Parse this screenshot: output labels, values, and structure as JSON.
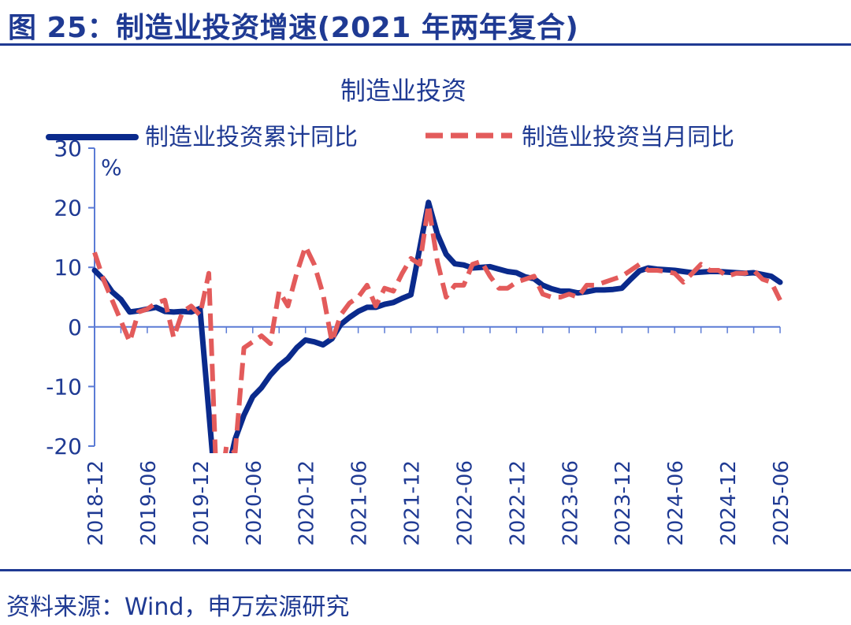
{
  "figure_title": "图 25：制造业投资增速(2021 年两年复合)",
  "source_text": "资料来源：Wind，申万宏源研究",
  "chart_data": {
    "type": "line",
    "title": "制造业投资",
    "y_unit": "%",
    "ylim": [
      -20,
      30
    ],
    "yticks": [
      30,
      20,
      10,
      0,
      -10,
      -20
    ],
    "x_tick_labels": [
      "2018-12",
      "2019-06",
      "2019-12",
      "2020-06",
      "2020-12",
      "2021-06",
      "2021-12",
      "2022-06",
      "2022-12",
      "2023-06",
      "2023-12",
      "2024-06",
      "2024-12",
      "2025-06"
    ],
    "x_start": "2018-12",
    "x_end": "2025-06",
    "legend_position": "top",
    "grid": false,
    "series": [
      {
        "name": "制造业投资累计同比",
        "color": "#0a2a8c",
        "style": "solid",
        "points": [
          [
            "2018-12",
            9.5
          ],
          [
            "2019-01",
            8
          ],
          [
            "2019-02",
            5.9
          ],
          [
            "2019-03",
            4.6
          ],
          [
            "2019-04",
            2.5
          ],
          [
            "2019-05",
            2.7
          ],
          [
            "2019-06",
            3.0
          ],
          [
            "2019-07",
            3.3
          ],
          [
            "2019-08",
            2.6
          ],
          [
            "2019-09",
            2.5
          ],
          [
            "2019-10",
            2.6
          ],
          [
            "2019-11",
            2.5
          ],
          [
            "2019-12",
            3.1
          ],
          [
            "2020-02",
            -31.5
          ],
          [
            "2020-03",
            -25.2
          ],
          [
            "2020-04",
            -18.8
          ],
          [
            "2020-05",
            -14.8
          ],
          [
            "2020-06",
            -11.7
          ],
          [
            "2020-07",
            -10.2
          ],
          [
            "2020-08",
            -8.1
          ],
          [
            "2020-09",
            -6.5
          ],
          [
            "2020-10",
            -5.3
          ],
          [
            "2020-11",
            -3.5
          ],
          [
            "2020-12",
            -2.2
          ],
          [
            "2021-01",
            -2.5
          ],
          [
            "2021-02",
            -3.0
          ],
          [
            "2021-03",
            -2.0
          ],
          [
            "2021-04",
            0.4
          ],
          [
            "2021-05",
            1.6
          ],
          [
            "2021-06",
            2.6
          ],
          [
            "2021-07",
            3.3
          ],
          [
            "2021-08",
            3.3
          ],
          [
            "2021-09",
            3.8
          ],
          [
            "2021-10",
            4.1
          ],
          [
            "2021-11",
            4.8
          ],
          [
            "2021-12",
            5.4
          ],
          [
            "2022-02",
            20.9
          ],
          [
            "2022-03",
            15.6
          ],
          [
            "2022-04",
            12.2
          ],
          [
            "2022-05",
            10.6
          ],
          [
            "2022-06",
            10.4
          ],
          [
            "2022-07",
            9.9
          ],
          [
            "2022-08",
            10.0
          ],
          [
            "2022-09",
            10.1
          ],
          [
            "2022-10",
            9.7
          ],
          [
            "2022-11",
            9.3
          ],
          [
            "2022-12",
            9.1
          ],
          [
            "2023-01",
            8.4
          ],
          [
            "2023-02",
            8.1
          ],
          [
            "2023-03",
            7.0
          ],
          [
            "2023-04",
            6.4
          ],
          [
            "2023-05",
            6.0
          ],
          [
            "2023-06",
            6.0
          ],
          [
            "2023-07",
            5.7
          ],
          [
            "2023-08",
            5.9
          ],
          [
            "2023-09",
            6.2
          ],
          [
            "2023-10",
            6.2
          ],
          [
            "2023-11",
            6.3
          ],
          [
            "2023-12",
            6.5
          ],
          [
            "2024-01",
            8.0
          ],
          [
            "2024-02",
            9.4
          ],
          [
            "2024-03",
            9.9
          ],
          [
            "2024-04",
            9.7
          ],
          [
            "2024-05",
            9.6
          ],
          [
            "2024-06",
            9.5
          ],
          [
            "2024-07",
            9.3
          ],
          [
            "2024-08",
            9.1
          ],
          [
            "2024-09",
            9.2
          ],
          [
            "2024-10",
            9.3
          ],
          [
            "2024-11",
            9.3
          ],
          [
            "2024-12",
            9.2
          ],
          [
            "2025-01",
            9.1
          ],
          [
            "2025-02",
            9.0
          ],
          [
            "2025-03",
            9.1
          ],
          [
            "2025-04",
            8.8
          ],
          [
            "2025-05",
            8.5
          ],
          [
            "2025-06",
            7.5
          ]
        ]
      },
      {
        "name": "制造业投资当月同比",
        "color": "#e35b5b",
        "style": "dashed",
        "points": [
          [
            "2018-12",
            12.5
          ],
          [
            "2019-01",
            8
          ],
          [
            "2019-02",
            4.5
          ],
          [
            "2019-03",
            1
          ],
          [
            "2019-04",
            -2.5
          ],
          [
            "2019-05",
            2.5
          ],
          [
            "2019-06",
            3.0
          ],
          [
            "2019-07",
            4.0
          ],
          [
            "2019-08",
            4.5
          ],
          [
            "2019-09",
            -1.8
          ],
          [
            "2019-10",
            2.5
          ],
          [
            "2019-11",
            3.5
          ],
          [
            "2019-12",
            2.0
          ],
          [
            "2020-01",
            9.0
          ],
          [
            "2020-02",
            -31.5
          ],
          [
            "2020-03",
            -20.0
          ],
          [
            "2020-04",
            -21.0
          ],
          [
            "2020-05",
            -3.5
          ],
          [
            "2020-06",
            -2.5
          ],
          [
            "2020-07",
            -1.5
          ],
          [
            "2020-08",
            -2.8
          ],
          [
            "2020-09",
            6.0
          ],
          [
            "2020-10",
            3.5
          ],
          [
            "2020-11",
            9.0
          ],
          [
            "2020-12",
            13.5
          ],
          [
            "2021-01",
            10.5
          ],
          [
            "2021-02",
            5.5
          ],
          [
            "2021-03",
            -2.5
          ],
          [
            "2021-04",
            2.0
          ],
          [
            "2021-05",
            4.0
          ],
          [
            "2021-06",
            5.0
          ],
          [
            "2021-07",
            7.0
          ],
          [
            "2021-08",
            3.5
          ],
          [
            "2021-09",
            6.5
          ],
          [
            "2021-10",
            6.0
          ],
          [
            "2021-11",
            9.0
          ],
          [
            "2021-12",
            11.5
          ],
          [
            "2022-01",
            10.5
          ],
          [
            "2022-02",
            20.5
          ],
          [
            "2022-03",
            11.0
          ],
          [
            "2022-04",
            5.0
          ],
          [
            "2022-05",
            7.0
          ],
          [
            "2022-06",
            7.0
          ],
          [
            "2022-07",
            10.5
          ],
          [
            "2022-08",
            11.0
          ],
          [
            "2022-09",
            8.5
          ],
          [
            "2022-10",
            6.5
          ],
          [
            "2022-11",
            6.5
          ],
          [
            "2022-12",
            7.5
          ],
          [
            "2023-01",
            8.0
          ],
          [
            "2023-02",
            8.5
          ],
          [
            "2023-03",
            5.5
          ],
          [
            "2023-04",
            5.0
          ],
          [
            "2023-05",
            5.0
          ],
          [
            "2023-06",
            5.5
          ],
          [
            "2023-07",
            5.0
          ],
          [
            "2023-08",
            7.0
          ],
          [
            "2023-09",
            7.0
          ],
          [
            "2023-10",
            7.5
          ],
          [
            "2023-11",
            8.0
          ],
          [
            "2023-12",
            8.5
          ],
          [
            "2024-01",
            9.5
          ],
          [
            "2024-02",
            10.5
          ],
          [
            "2024-03",
            9.5
          ],
          [
            "2024-04",
            9.5
          ],
          [
            "2024-05",
            9.3
          ],
          [
            "2024-06",
            9.0
          ],
          [
            "2024-07",
            7.5
          ],
          [
            "2024-08",
            9.0
          ],
          [
            "2024-09",
            10.5
          ],
          [
            "2024-10",
            9.5
          ],
          [
            "2024-11",
            9.5
          ],
          [
            "2024-12",
            8.5
          ],
          [
            "2025-01",
            9.0
          ],
          [
            "2025-02",
            9.0
          ],
          [
            "2025-03",
            9.5
          ],
          [
            "2025-04",
            8.0
          ],
          [
            "2025-05",
            7.5
          ],
          [
            "2025-06",
            4.5
          ]
        ]
      }
    ]
  }
}
